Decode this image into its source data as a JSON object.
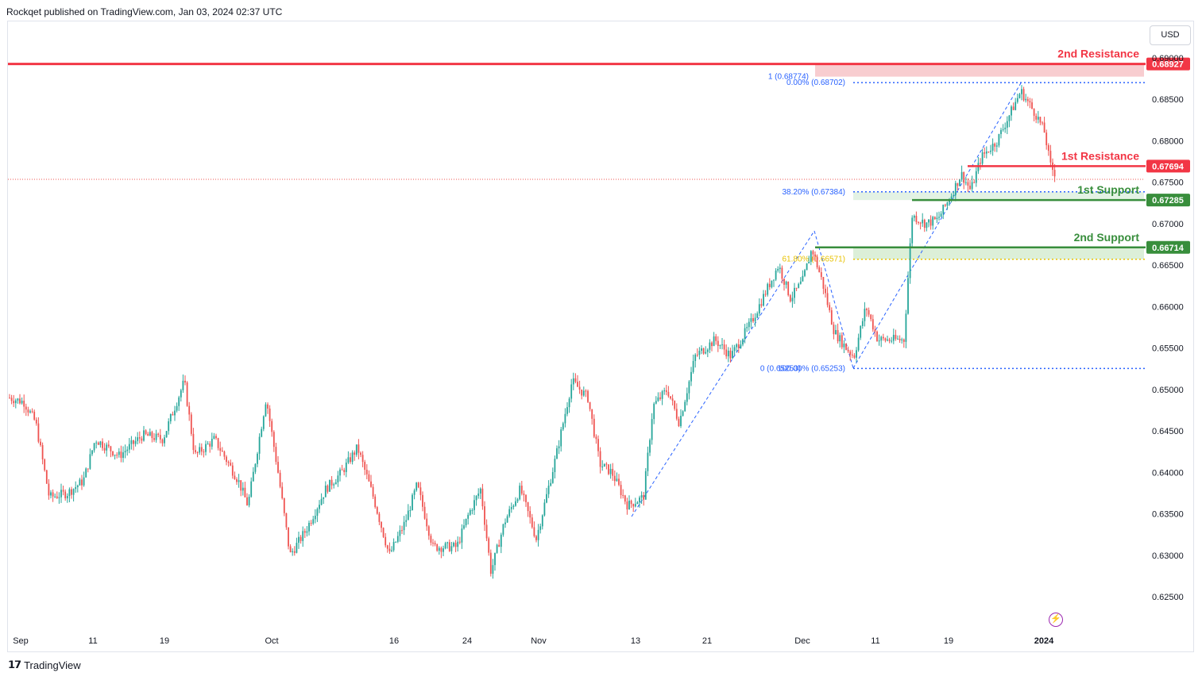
{
  "header": {
    "published_by": "Rockqet published on TradingView.com, Jan 03, 2024 02:37 UTC"
  },
  "currency_button": "USD",
  "footer": {
    "logo_mark": "𝟭𝟳",
    "brand": "TradingView"
  },
  "colors": {
    "up": "#26a69a",
    "down": "#ef5350",
    "resistance": "#f23645",
    "support": "#388e3c",
    "fib": "#2962ff"
  },
  "icons": {
    "logo": "tradingview-logo-icon",
    "bolt": "lightning-bolt-icon"
  },
  "chart_data": {
    "type": "candlestick",
    "symbol_currency": "USD",
    "y_ticks": [
      "0.69000",
      "0.68500",
      "0.68000",
      "0.67500",
      "0.67000",
      "0.66500",
      "0.66000",
      "0.65500",
      "0.65000",
      "0.64500",
      "0.64000",
      "0.63500",
      "0.63000",
      "0.62500"
    ],
    "x_ticks": [
      "Sep",
      "11",
      "19",
      "Oct",
      "16",
      "24",
      "Nov",
      "13",
      "21",
      "Dec",
      "11",
      "19",
      "2024"
    ],
    "levels": [
      {
        "name": "2nd Resistance",
        "value": "0.68927",
        "kind": "resistance"
      },
      {
        "name": "1st Resistance",
        "value": "0.67694",
        "kind": "resistance"
      },
      {
        "name": "1st Support",
        "value": "0.67285",
        "kind": "support"
      },
      {
        "name": "2nd Support",
        "value": "0.66714",
        "kind": "support"
      }
    ],
    "fib_labels": [
      {
        "text": "1 (0.68774)",
        "value": 0.68774
      },
      {
        "text": "0.00% (0.68702)",
        "value": 0.68702
      },
      {
        "text": "38.20% (0.67384)",
        "value": 0.67384
      },
      {
        "text": "61.80% (0.66571)",
        "value": 0.66571
      },
      {
        "text": "0 (0.65253)",
        "value": 0.65253
      },
      {
        "text": "100.00% (0.65253)",
        "value": 0.65253
      }
    ],
    "price_range": [
      0.6225,
      0.6905
    ],
    "grid": false
  }
}
